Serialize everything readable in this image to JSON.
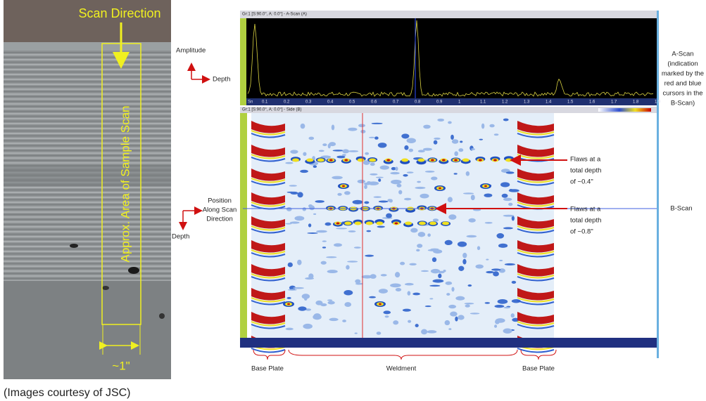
{
  "figure": {
    "caption": "(Images courtesy of JSC)"
  },
  "photo": {
    "scan_direction": "Scan Direction",
    "area_label": "Approx. Area of Sample Scan",
    "width_label": "~1\""
  },
  "ascan_axes": {
    "amplitude": "Amplitude",
    "depth": "Depth"
  },
  "bscan_axes": {
    "position": [
      "Position",
      "Along Scan",
      "Direction"
    ],
    "depth": "Depth"
  },
  "software": {
    "ascan_title": "Gr:1 [S:90.0°, A: 0.0°] - A-Scan (A)",
    "bscan_title": "Gr:1 [S:90.0°, A: 0.0°] - Side (B)",
    "ascan_ticks": [
      "Sn",
      "0.1",
      "0.2",
      "0.3",
      "0.4",
      "0.5",
      "0.6",
      "0.7",
      "0.8",
      "0.9",
      "1",
      "1.1",
      "1.2",
      "1.3",
      "1.4",
      "1.5",
      "1.6",
      "1.7",
      "1.8",
      "1.9"
    ]
  },
  "annotations": {
    "ascan": [
      "A-Scan",
      "(indication",
      "marked by the",
      "red and blue",
      "cursors in the",
      "B-Scan)"
    ],
    "bscan": "B-Scan",
    "flaws_shallow": [
      "Flaws at a",
      "total depth",
      "of ~0.4\""
    ],
    "flaws_deep": [
      "Flaws at a",
      "total depth",
      "of ~0.8\""
    ]
  },
  "regions": [
    "Base Plate",
    "Weldment",
    "Base Plate"
  ]
}
